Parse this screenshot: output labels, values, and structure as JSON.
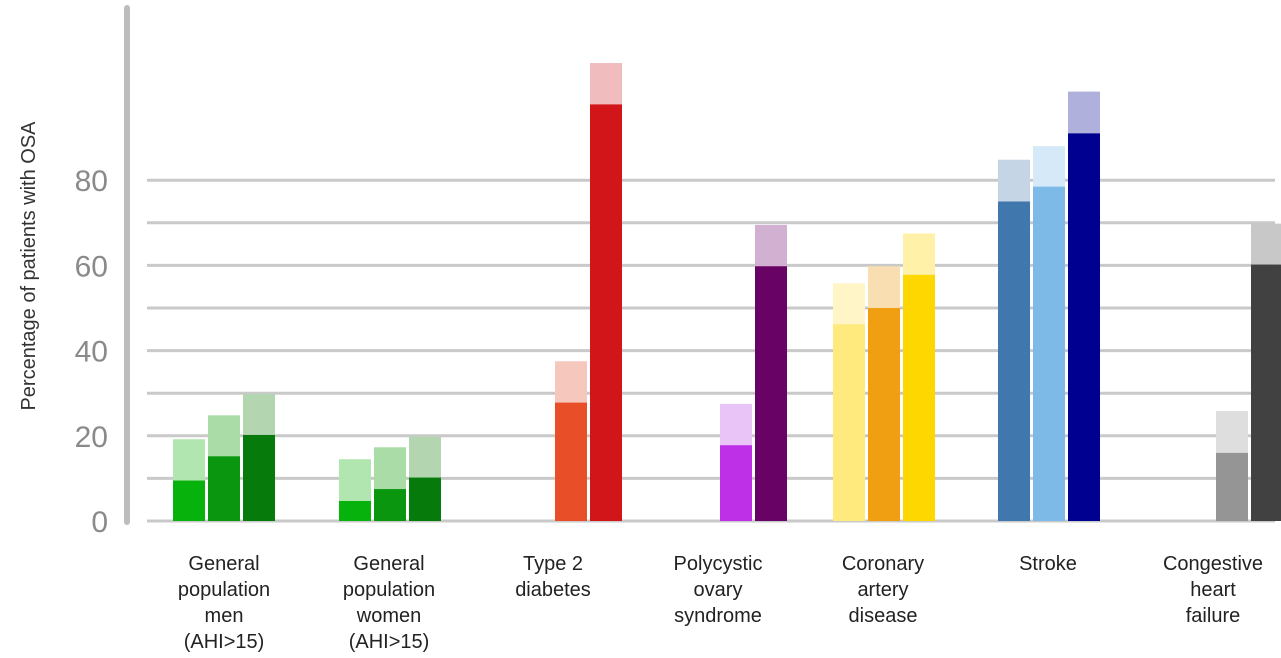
{
  "chart_data": {
    "type": "bar",
    "title": "",
    "ylabel": "Percentage of patients with OSA",
    "xlabel": "",
    "ylim": [
      0,
      100
    ],
    "yticks": [
      0,
      20,
      40,
      60,
      80
    ],
    "grid": true,
    "categories": [
      "General population men (AHI>15)",
      "General population women (AHI>15)",
      "Type 2 diabetes",
      "Polycystic ovary syndrome",
      "Coronary artery disease",
      "Stroke",
      "Congestive heart failure"
    ],
    "category_lines": [
      [
        "General",
        "population",
        "men",
        "(AHI>15)"
      ],
      [
        "General",
        "population",
        "women",
        "(AHI>15)"
      ],
      [
        "Type 2",
        "diabetes"
      ],
      [
        "Polycystic",
        "ovary",
        "syndrome"
      ],
      [
        "Coronary",
        "artery",
        "disease"
      ],
      [
        "Stroke"
      ],
      [
        "Congestive",
        "heart",
        "failure"
      ]
    ],
    "groups": [
      {
        "bars": [
          {
            "low": 9.5,
            "high": 19.2,
            "color": "#08b20c",
            "light": "#b2e6b0"
          },
          {
            "low": 15.2,
            "high": 24.8,
            "color": "#0a960e",
            "light": "#a9dca6"
          },
          {
            "low": 20.2,
            "high": 29.8,
            "color": "#067a0a",
            "light": "#b3d6b1"
          }
        ]
      },
      {
        "bars": [
          {
            "low": 4.7,
            "high": 14.5,
            "color": "#08b20c",
            "light": "#b2e6b0"
          },
          {
            "low": 7.5,
            "high": 17.3,
            "color": "#0a960e",
            "light": "#a9dca6"
          },
          {
            "low": 10.2,
            "high": 19.8,
            "color": "#067a0a",
            "light": "#b3d6b1"
          }
        ]
      },
      {
        "bars": [
          {
            "skip": true
          },
          {
            "low": 27.8,
            "high": 37.5,
            "color": "#e84e28",
            "light": "#f6c8bd"
          },
          {
            "low": 97.8,
            "high": 107.5,
            "color": "#d11518",
            "light": "#f1bcbd"
          }
        ]
      },
      {
        "bars": [
          {
            "skip": true
          },
          {
            "low": 17.8,
            "high": 27.5,
            "color": "#be2fe8",
            "light": "#e9c4f6"
          },
          {
            "low": 59.8,
            "high": 69.5,
            "color": "#680265",
            "light": "#d2b0d1"
          }
        ]
      },
      {
        "bars": [
          {
            "low": 46.2,
            "high": 55.8,
            "color": "#ffea7d",
            "light": "#fff5c6"
          },
          {
            "low": 50.0,
            "high": 59.8,
            "color": "#f09e12",
            "light": "#f9deb2"
          },
          {
            "low": 57.8,
            "high": 67.5,
            "color": "#ffd700",
            "light": "#fff1a8"
          }
        ]
      },
      {
        "bars": [
          {
            "low": 75.0,
            "high": 84.8,
            "color": "#4077ac",
            "light": "#c5d5e6"
          },
          {
            "low": 78.5,
            "high": 88.0,
            "color": "#7ebae8",
            "light": "#d6e9f8"
          },
          {
            "low": 91.0,
            "high": 100.8,
            "color": "#000090",
            "light": "#b0b0dc"
          }
        ]
      },
      {
        "bars": [
          {
            "skip": true
          },
          {
            "low": 16.0,
            "high": 25.8,
            "color": "#959595",
            "light": "#dedede"
          },
          {
            "low": 60.2,
            "high": 69.8,
            "color": "#414141",
            "light": "#c8c8c8"
          }
        ]
      }
    ]
  }
}
